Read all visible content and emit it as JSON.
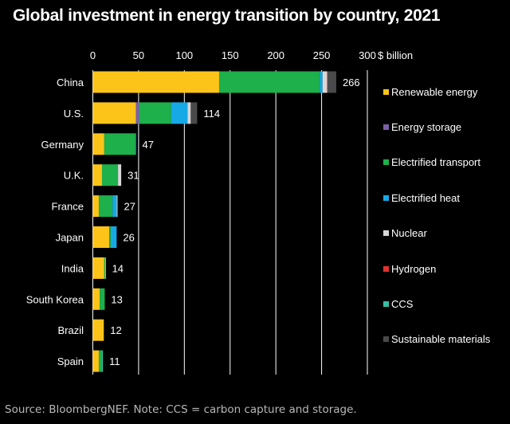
{
  "chart_data": {
    "type": "bar",
    "orientation": "horizontal",
    "stacked": true,
    "title": "Global investment in energy transition by country, 2021",
    "xlabel": "$ billion",
    "ylabel": "",
    "xlim": [
      0,
      300
    ],
    "xticks": [
      0,
      50,
      100,
      150,
      200,
      250,
      300
    ],
    "grid": true,
    "legend_position": "right",
    "categories": [
      "China",
      "U.S.",
      "Germany",
      "U.K.",
      "France",
      "Japan",
      "India",
      "South Korea",
      "Brazil",
      "Spain"
    ],
    "totals": [
      266,
      114,
      47,
      31,
      27,
      26,
      14,
      13,
      12,
      11
    ],
    "series": [
      {
        "name": "Renewable energy",
        "color": "#fcc419",
        "values": [
          138,
          47,
          12.5,
          10,
          6.5,
          18,
          12.5,
          7.5,
          12,
          6.5
        ]
      },
      {
        "name": "Energy storage",
        "color": "#7b5fa6",
        "values": [
          0,
          3.5,
          0,
          0,
          0,
          0,
          0,
          0,
          0,
          0
        ]
      },
      {
        "name": "Electrified transport",
        "color": "#1db04b",
        "values": [
          110,
          35,
          34,
          17.5,
          15,
          1.5,
          1,
          5.5,
          0,
          3.5
        ]
      },
      {
        "name": "Electrified heat",
        "color": "#16a9e6",
        "values": [
          3,
          18,
          0.5,
          0,
          4.5,
          6.5,
          0,
          0,
          0,
          0
        ]
      },
      {
        "name": "Nuclear",
        "color": "#d7d7d7",
        "values": [
          5,
          3.5,
          0,
          3.5,
          0.5,
          0,
          0.5,
          0,
          0,
          0
        ]
      },
      {
        "name": "Hydrogen",
        "color": "#e0312f",
        "values": [
          0.5,
          0,
          0,
          0,
          0,
          0,
          0,
          0,
          0,
          0
        ]
      },
      {
        "name": "CCS",
        "color": "#35bfa5",
        "values": [
          0,
          0,
          0,
          0,
          0.5,
          0,
          0,
          0,
          0,
          1
        ]
      },
      {
        "name": "Sustainable materials",
        "color": "#4a4a4a",
        "values": [
          9.5,
          7,
          0,
          0,
          0,
          0,
          0,
          0,
          0,
          0
        ]
      }
    ]
  },
  "source_note": "Source: BloombergNEF. Note: CCS = carbon capture and storage."
}
